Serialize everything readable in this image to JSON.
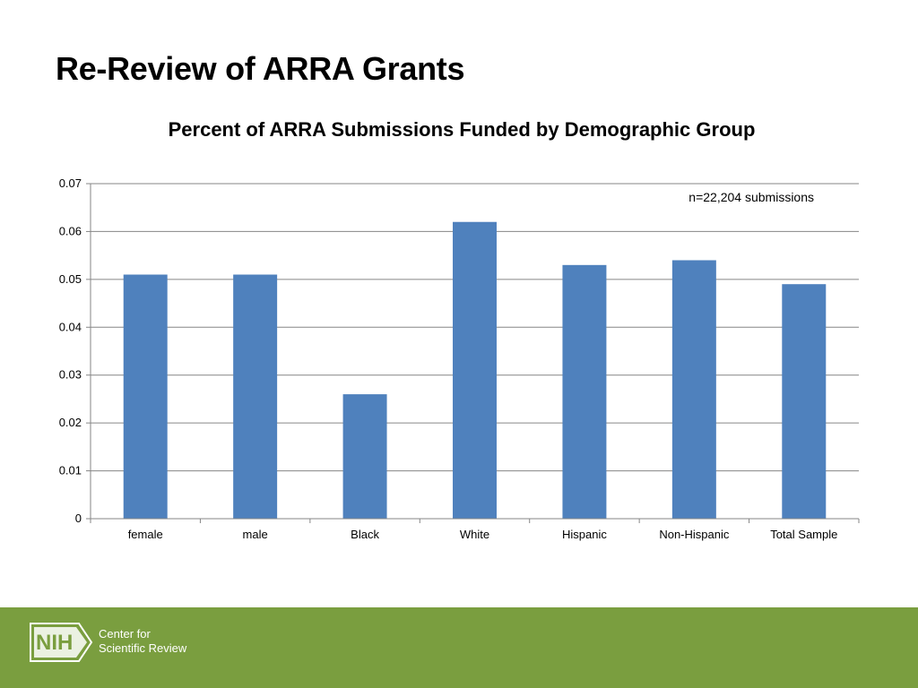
{
  "slide": {
    "title": "Re-Review of ARRA Grants"
  },
  "chart_data": {
    "type": "bar",
    "title": "Percent  of ARRA Submissions Funded by Demographic Group",
    "categories": [
      "female",
      "male",
      "Black",
      "White",
      "Hispanic",
      "Non-Hispanic",
      "Total Sample"
    ],
    "values": [
      0.051,
      0.051,
      0.026,
      0.062,
      0.053,
      0.054,
      0.049
    ],
    "ylim": [
      0,
      0.07
    ],
    "yticks": [
      "0",
      "0.01",
      "0.02",
      "0.03",
      "0.04",
      "0.05",
      "0.06",
      "0.07"
    ],
    "xlabel": "",
    "ylabel": "",
    "grid": true,
    "legend": "none",
    "annotation": "n=22,204 submissions",
    "bar_color": "#4f81bd"
  },
  "footer": {
    "logo_text": "NIH",
    "org_line1": "Center for",
    "org_line2": "Scientific Review",
    "background": "#7a9e3f"
  }
}
